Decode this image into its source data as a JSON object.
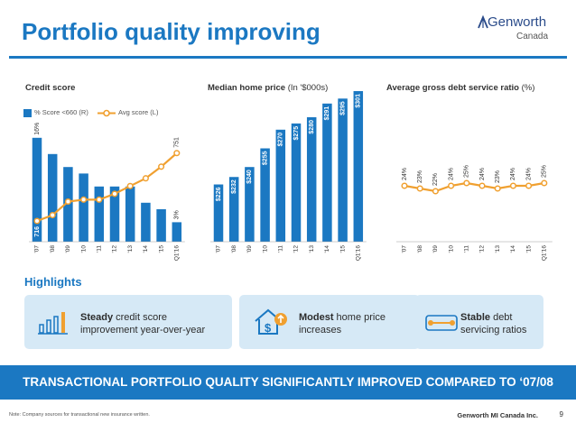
{
  "slide": {
    "title": "Portfolio quality improving",
    "logo_main": "Genworth",
    "logo_sub": "Canada",
    "highlights_title": "Highlights",
    "banner": "TRANSACTIONAL PORTFOLIO QUALITY SIGNIFICANTLY IMPROVED COMPARED TO ‘07/08",
    "note": "Note: Company sources for transactional new insurance written.",
    "footer_company": "Genworth MI Canada Inc.",
    "page_number": "9"
  },
  "highlights": [
    {
      "bold": "Steady",
      "rest": " credit score improvement year-over-year",
      "icon": "bar-chart-icon"
    },
    {
      "bold": "Modest",
      "rest": " home price increases",
      "icon": "house-dollar-icon"
    },
    {
      "bold": "Stable",
      "rest": " debt servicing ratios",
      "icon": "ratio-slider-icon"
    }
  ],
  "colors": {
    "accent": "#1b78c2",
    "line": "#f0a030",
    "panel": "#d6e9f6"
  },
  "chart_data": [
    {
      "type": "bar",
      "title": "Credit score",
      "categories": [
        "'07",
        "'08",
        "'09",
        "'10",
        "'11",
        "'12",
        "'13",
        "'14",
        "'15",
        "Q1'16"
      ],
      "series": [
        {
          "name": "% Score <660 (R)",
          "type": "bar",
          "values": [
            16,
            13.5,
            11.5,
            10.5,
            8.5,
            8.5,
            8.5,
            6,
            5,
            3
          ],
          "labels": {
            "0": "16%",
            "9": "3%"
          }
        },
        {
          "name": "Avg score (L)",
          "type": "line",
          "values": [
            716,
            719,
            726,
            727,
            727,
            730,
            734,
            738,
            744,
            751
          ],
          "labels": {
            "0": "716",
            "9": "751"
          }
        }
      ],
      "legend": "top-left"
    },
    {
      "type": "bar",
      "title": "Median home price",
      "title_unit": "(In '$000s)",
      "categories": [
        "'07",
        "'08",
        "'09",
        "'10",
        "'11",
        "'12",
        "'13",
        "'14",
        "'15",
        "Q1'16"
      ],
      "values": [
        226,
        232,
        240,
        255,
        270,
        275,
        280,
        291,
        295,
        301
      ],
      "labels": [
        "$226",
        "$232",
        "$240",
        "$255",
        "$270",
        "$275",
        "$280",
        "$291",
        "$295",
        "$301"
      ]
    },
    {
      "type": "line",
      "title": "Average gross debt service ratio",
      "title_unit": "(%)",
      "categories": [
        "'07",
        "'08",
        "'09",
        "'10",
        "'11",
        "'12",
        "'13",
        "'14",
        "'15",
        "Q1'16"
      ],
      "values": [
        24,
        23,
        22,
        24,
        25,
        24,
        23,
        24,
        24,
        25
      ],
      "labels": [
        "24%",
        "23%",
        "22%",
        "24%",
        "25%",
        "24%",
        "23%",
        "24%",
        "24%",
        "25%"
      ]
    }
  ]
}
